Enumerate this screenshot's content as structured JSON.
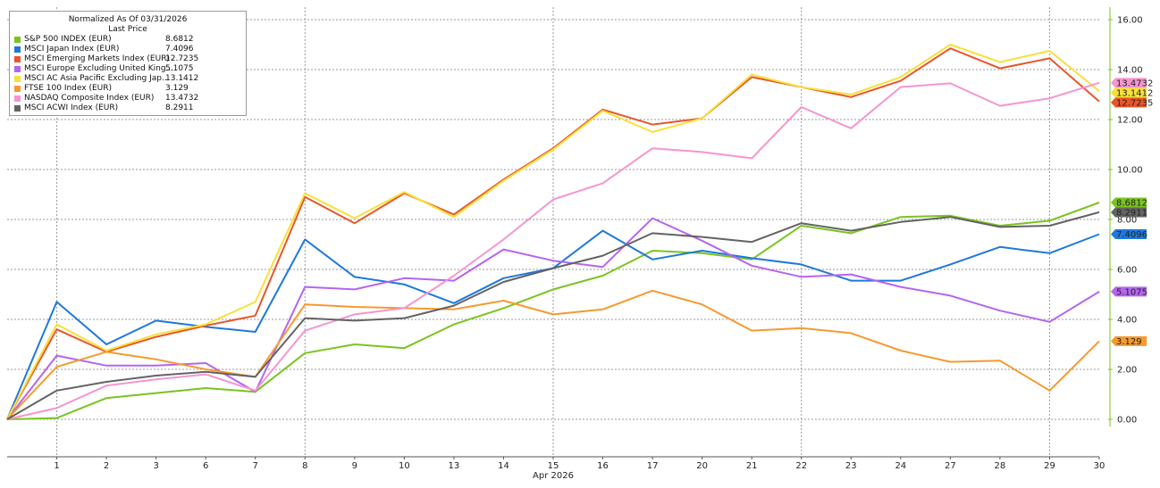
{
  "chart_data": {
    "type": "line",
    "title": "",
    "xlabel": "",
    "ylabel": "",
    "x_axis_month": "Apr 2026",
    "categories": [
      "",
      "1",
      "2",
      "3",
      "6",
      "7",
      "8",
      "9",
      "10",
      "13",
      "14",
      "15",
      "16",
      "17",
      "20",
      "21",
      "22",
      "23",
      "24",
      "27",
      "28",
      "29",
      "30"
    ],
    "ylim": [
      -1.5,
      16.5
    ],
    "y_ticks": [
      "0.00",
      "2.00",
      "4.00",
      "6.00",
      "8.00",
      "10.00",
      "12.00",
      "14.00",
      "16.00"
    ],
    "grid": true,
    "legend": {
      "placement": "top-left",
      "header_line1": "Normalized As Of 03/31/2026",
      "header_line2": "Last Price"
    },
    "series": [
      {
        "name": "S&P 500 INDEX (EUR)",
        "last_label": "8.6812",
        "color": "#7ac41f",
        "values": [
          0,
          0.05,
          0.85,
          1.05,
          1.25,
          1.1,
          2.65,
          3.0,
          2.85,
          3.8,
          4.45,
          5.2,
          5.75,
          6.75,
          6.65,
          6.4,
          7.75,
          7.45,
          8.1,
          8.15,
          7.75,
          7.95,
          8.68
        ]
      },
      {
        "name": "MSCI Japan Index (EUR)",
        "last_label": "7.4096",
        "color": "#1f78dc",
        "values": [
          0,
          4.7,
          3.0,
          3.95,
          3.7,
          3.5,
          7.2,
          5.7,
          5.4,
          4.65,
          5.65,
          6.05,
          7.55,
          6.4,
          6.75,
          6.45,
          6.2,
          5.55,
          5.55,
          6.2,
          6.9,
          6.65,
          7.41
        ]
      },
      {
        "name": "MSCI Emerging Markets Index (EUR)",
        "last_label": "12.7235",
        "color": "#e8562a",
        "values": [
          0,
          3.6,
          2.7,
          3.3,
          3.75,
          4.15,
          8.9,
          7.85,
          9.05,
          8.2,
          9.6,
          10.85,
          12.4,
          11.8,
          12.05,
          13.7,
          13.3,
          12.9,
          13.55,
          14.85,
          14.05,
          14.45,
          12.72
        ]
      },
      {
        "name": "MSCI Europe Excluding United King...",
        "last_label": "5.1075",
        "color": "#b565f0",
        "values": [
          0,
          2.55,
          2.15,
          2.15,
          2.25,
          1.1,
          5.3,
          5.2,
          5.65,
          5.55,
          6.8,
          6.35,
          6.1,
          8.05,
          7.15,
          6.15,
          5.7,
          5.8,
          5.3,
          4.95,
          4.35,
          3.9,
          5.11
        ]
      },
      {
        "name": "MSCI AC Asia Pacific Excluding Jap...",
        "last_label": "13.1412",
        "color": "#f8e038",
        "values": [
          0,
          3.8,
          2.75,
          3.4,
          3.8,
          4.7,
          9.05,
          8.05,
          9.1,
          8.1,
          9.55,
          10.8,
          12.35,
          11.5,
          12.05,
          13.8,
          13.3,
          13.0,
          13.7,
          15.0,
          14.3,
          14.75,
          13.14
        ]
      },
      {
        "name": "FTSE 100 Index (EUR)",
        "last_label": "3.129",
        "color": "#f59a2f",
        "values": [
          0,
          2.1,
          2.7,
          2.4,
          2.0,
          1.7,
          4.6,
          4.5,
          4.45,
          4.4,
          4.75,
          4.2,
          4.4,
          5.15,
          4.6,
          3.55,
          3.65,
          3.45,
          2.75,
          2.3,
          2.35,
          1.15,
          3.13
        ]
      },
      {
        "name": "NASDAQ Composite Index (EUR)",
        "last_label": "13.4732",
        "color": "#f595d0",
        "values": [
          0,
          0.45,
          1.35,
          1.6,
          1.8,
          1.15,
          3.55,
          4.2,
          4.45,
          5.75,
          7.2,
          8.8,
          9.45,
          10.85,
          10.7,
          10.45,
          12.5,
          11.65,
          13.3,
          13.45,
          12.55,
          12.85,
          13.47
        ]
      },
      {
        "name": "MSCI ACWI Index (EUR)",
        "last_label": "8.2911",
        "color": "#636363",
        "values": [
          0,
          1.15,
          1.5,
          1.75,
          1.9,
          1.7,
          4.05,
          3.95,
          4.05,
          4.55,
          5.5,
          6.05,
          6.55,
          7.45,
          7.3,
          7.1,
          7.85,
          7.55,
          7.9,
          8.1,
          7.7,
          7.75,
          8.29
        ]
      }
    ]
  }
}
